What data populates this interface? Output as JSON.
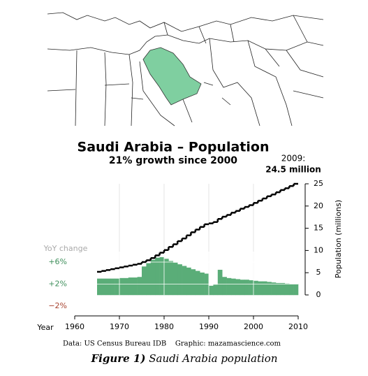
{
  "chart_data": {
    "type": "step-bar",
    "title": "Saudi Arabia – Population",
    "subtitle": "21% growth since 2000",
    "annotation": {
      "year_label": "2009:",
      "value_label": "24.5 million"
    },
    "xlabel": "Year",
    "y2label": "Population (millions)",
    "yoy_label": "YoY change",
    "source": "Data: US Census Bureau IDB    Graphic: mazamascience.com",
    "caption": {
      "number": "Figure 1)",
      "text": " Saudi Arabia population"
    },
    "xlim": [
      1960,
      2010
    ],
    "xticks": [
      1960,
      1970,
      1980,
      1990,
      2000,
      2010
    ],
    "ylim": [
      -2,
      6
    ],
    "yticks": [
      {
        "value": 6,
        "label": "+6%"
      },
      {
        "value": 2,
        "label": "+2%"
      },
      {
        "value": -2,
        "label": "−2%"
      }
    ],
    "y2lim": [
      0,
      25
    ],
    "y2ticks": [
      0,
      5,
      10,
      15,
      20,
      25
    ],
    "grid": true,
    "x": [
      1966,
      1967,
      1968,
      1969,
      1970,
      1971,
      1972,
      1973,
      1974,
      1975,
      1976,
      1977,
      1978,
      1979,
      1980,
      1981,
      1982,
      1983,
      1984,
      1985,
      1986,
      1987,
      1988,
      1989,
      1990,
      1991,
      1992,
      1993,
      1994,
      1995,
      1996,
      1997,
      1998,
      1999,
      2000,
      2001,
      2002,
      2003,
      2004,
      2005,
      2006,
      2007,
      2008,
      2009,
      2010
    ],
    "series": [
      {
        "kind": "bar",
        "color": "#5aad78",
        "values": [
          3.0,
          3.0,
          3.0,
          3.0,
          3.0,
          3.1,
          3.1,
          3.2,
          3.2,
          3.3,
          5.2,
          5.8,
          6.4,
          6.8,
          6.9,
          6.6,
          6.2,
          5.9,
          5.6,
          5.3,
          5.0,
          4.7,
          4.4,
          4.1,
          3.9,
          1.7,
          1.9,
          4.6,
          3.3,
          3.1,
          3.0,
          2.9,
          2.8,
          2.8,
          2.7,
          2.6,
          2.5,
          2.5,
          2.4,
          2.3,
          2.2,
          2.2,
          2.1,
          2.0,
          2.0
        ]
      },
      {
        "kind": "step",
        "axis": "y2",
        "color": "#000000",
        "values": [
          5.2,
          5.4,
          5.6,
          5.8,
          6.0,
          6.2,
          6.4,
          6.6,
          6.8,
          7.0,
          7.4,
          7.8,
          8.3,
          8.9,
          9.5,
          10.1,
          10.8,
          11.4,
          12.1,
          12.7,
          13.4,
          14.1,
          14.7,
          15.3,
          15.9,
          16.1,
          16.4,
          17.1,
          17.6,
          18.0,
          18.5,
          18.9,
          19.4,
          19.8,
          20.2,
          20.7,
          21.2,
          21.7,
          22.2,
          22.6,
          23.1,
          23.6,
          24.0,
          24.5,
          25.0
        ]
      }
    ]
  }
}
